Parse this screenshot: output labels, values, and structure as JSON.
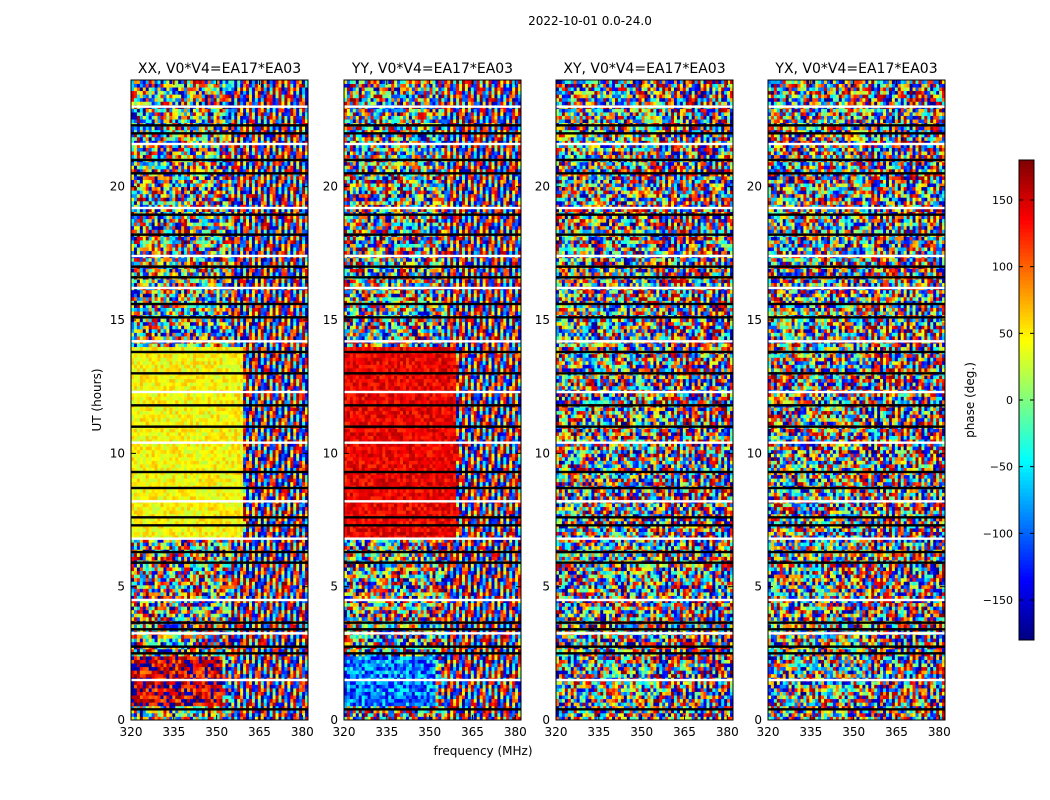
{
  "figure_title": "2022-10-01 0.0-24.0",
  "chart_data": {
    "type": "heatmap",
    "title": "2022-10-01 0.0-24.0",
    "xlabel": "frequency (MHz)",
    "ylabel": "UT (hours)",
    "xlim": [
      320,
      382
    ],
    "ylim": [
      0,
      24
    ],
    "x_ticks": [
      320,
      335,
      350,
      365,
      380
    ],
    "y_ticks": [
      0,
      5,
      10,
      15,
      20
    ],
    "colorbar": {
      "label": "phase (deg.)",
      "colormap": "jet",
      "range": [
        -180,
        180
      ],
      "ticks": [
        150,
        100,
        50,
        0,
        -50,
        -100,
        -150
      ],
      "tick_labels": [
        "150",
        "100",
        "50",
        "0",
        "−50",
        "−100",
        "−150"
      ]
    },
    "panels": [
      {
        "title": "XX, V0*V4=EA17*EA03",
        "polarization": "XX",
        "dominant_phase_day_low_freq": 45,
        "dominant_phase_dawn_low_freq": 150
      },
      {
        "title": "YY, V0*V4=EA17*EA03",
        "polarization": "YY",
        "dominant_phase_day_low_freq": 140,
        "dominant_phase_dawn_low_freq": -90
      },
      {
        "title": "XY, V0*V4=EA17*EA03",
        "polarization": "XY",
        "dominant_phase_day_low_freq": null,
        "dominant_phase_dawn_low_freq": null
      },
      {
        "title": "YX, V0*V4=EA17*EA03",
        "polarization": "YX",
        "dominant_phase_day_low_freq": null,
        "dominant_phase_dawn_low_freq": null
      }
    ],
    "flagged_time_bands_hours": [
      0.4,
      1.5,
      2.5,
      2.75,
      3.25,
      3.4,
      3.65,
      4.5,
      5.9,
      6.3,
      6.8,
      7.3,
      7.6,
      8.2,
      8.7,
      9.3,
      10.4,
      11.0,
      11.8,
      12.3,
      13.0,
      13.8,
      14.2,
      15.1,
      15.6,
      16.2,
      16.6,
      17.0,
      17.4,
      18.2,
      18.95,
      19.2,
      20.5,
      21.0,
      21.6,
      22.0,
      22.3,
      23.0
    ]
  }
}
